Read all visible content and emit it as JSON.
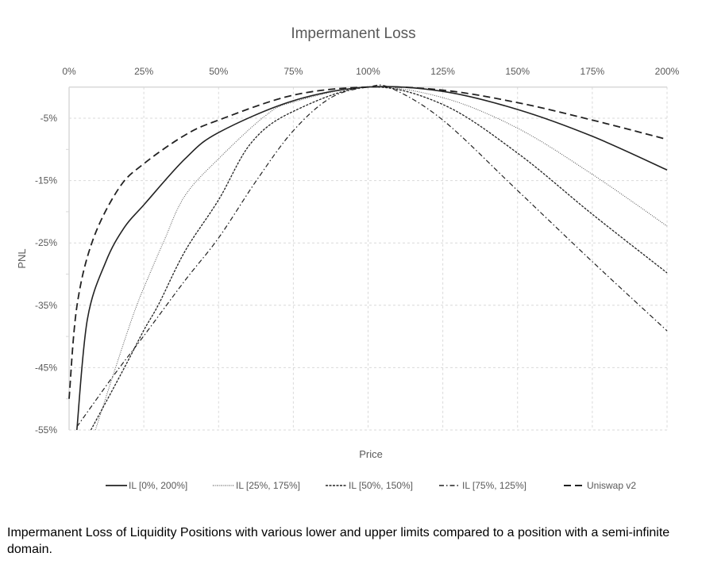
{
  "chart_data": {
    "type": "line",
    "title": "Impermanent Loss",
    "xlabel": "Price",
    "ylabel": "PNL",
    "xlim": [
      0,
      200
    ],
    "ylim": [
      -55,
      0
    ],
    "x_ticks": [
      "0%",
      "25%",
      "50%",
      "75%",
      "100%",
      "125%",
      "150%",
      "175%",
      "200%"
    ],
    "x_tick_values": [
      0,
      25,
      50,
      75,
      100,
      125,
      150,
      175,
      200
    ],
    "y_ticks": [
      "-5%",
      "-15%",
      "-25%",
      "-35%",
      "-45%",
      "-55%"
    ],
    "y_tick_values": [
      -5,
      -15,
      -25,
      -35,
      -45,
      -55
    ],
    "grid": true,
    "legend_position": "bottom",
    "series": [
      {
        "name": "IL [0%, 200%]",
        "style": "solid",
        "x": [
          2.6,
          6.1,
          12.3,
          18.5,
          25,
          38.8,
          50,
          75,
          100,
          125,
          150,
          175,
          200
        ],
        "y": [
          -55,
          -37.3,
          -28,
          -22.5,
          -18.9,
          -11.5,
          -7.3,
          -2.2,
          0,
          -0.7,
          -3.6,
          -7.9,
          -13.3
        ]
      },
      {
        "name": "IL [25%, 175%]",
        "style": "dotted",
        "x": [
          8.8,
          15,
          21.2,
          25,
          31.8,
          38.8,
          50,
          65.4,
          75,
          100,
          125,
          150,
          175,
          200
        ],
        "y": [
          -55,
          -45.8,
          -36.9,
          -32.2,
          -24.6,
          -17.4,
          -11.5,
          -4.7,
          -2.4,
          0,
          -1.7,
          -6.6,
          -14,
          -22.3
        ]
      },
      {
        "name": "IL [50%, 150%]",
        "style": "short-dash",
        "x": [
          7.3,
          18.5,
          25,
          30,
          38.8,
          50,
          61,
          75,
          100,
          125,
          150,
          175,
          200
        ],
        "y": [
          -55,
          -45,
          -39,
          -34.8,
          -26.3,
          -18.1,
          -8.9,
          -3.9,
          0,
          -2.8,
          -10.6,
          -20.4,
          -29.8
        ]
      },
      {
        "name": "IL [75%, 125%]",
        "style": "dash-dot",
        "x": [
          2.6,
          15,
          25,
          38.8,
          50,
          62.8,
          75,
          87.6,
          100,
          107.8,
          125,
          150,
          175,
          200
        ],
        "y": [
          -54.5,
          -46.2,
          -39.9,
          -31,
          -24.2,
          -14.9,
          -7,
          -1.7,
          0,
          -0.2,
          -5.3,
          -16.6,
          -28,
          -39.1
        ]
      },
      {
        "name": "Uniswap v2",
        "style": "long-dash",
        "x": [
          0,
          2.6,
          7.9,
          16.7,
          25,
          38.8,
          50,
          75,
          100,
          125,
          150,
          175,
          200
        ],
        "y": [
          -50,
          -35.2,
          -24.6,
          -16.2,
          -12.3,
          -7.7,
          -5.3,
          -1.3,
          0,
          -0.5,
          -2.5,
          -5.3,
          -8.4
        ]
      }
    ]
  },
  "caption": "Impermanent Loss of Liquidity Positions with various lower and upper limits compared to a position with a semi-infinite domain."
}
